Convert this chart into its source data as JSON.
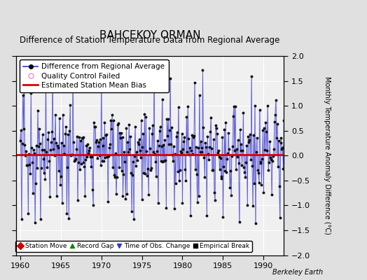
{
  "title": "BAHCEKOY ORMAN",
  "subtitle": "Difference of Station Temperature Data from Regional Average",
  "ylabel": "Monthly Temperature Anomaly Difference (°C)",
  "xlabel_bottom": "Berkeley Earth",
  "xlim": [
    1959.5,
    1992.5
  ],
  "ylim": [
    -2,
    2
  ],
  "yticks": [
    -2,
    -1.5,
    -1,
    -0.5,
    0,
    0.5,
    1,
    1.5,
    2
  ],
  "xticks": [
    1960,
    1965,
    1970,
    1975,
    1980,
    1985,
    1990
  ],
  "bias_value": 0.02,
  "background_color": "#e0e0e0",
  "plot_bg_color": "#f0f0f0",
  "line_color": "#3333cc",
  "line_color_light": "#aaaaee",
  "bias_color": "#dd0000",
  "marker_color": "#111111",
  "title_fontsize": 11,
  "subtitle_fontsize": 8.5,
  "axis_fontsize": 8,
  "legend_fontsize": 7.5
}
